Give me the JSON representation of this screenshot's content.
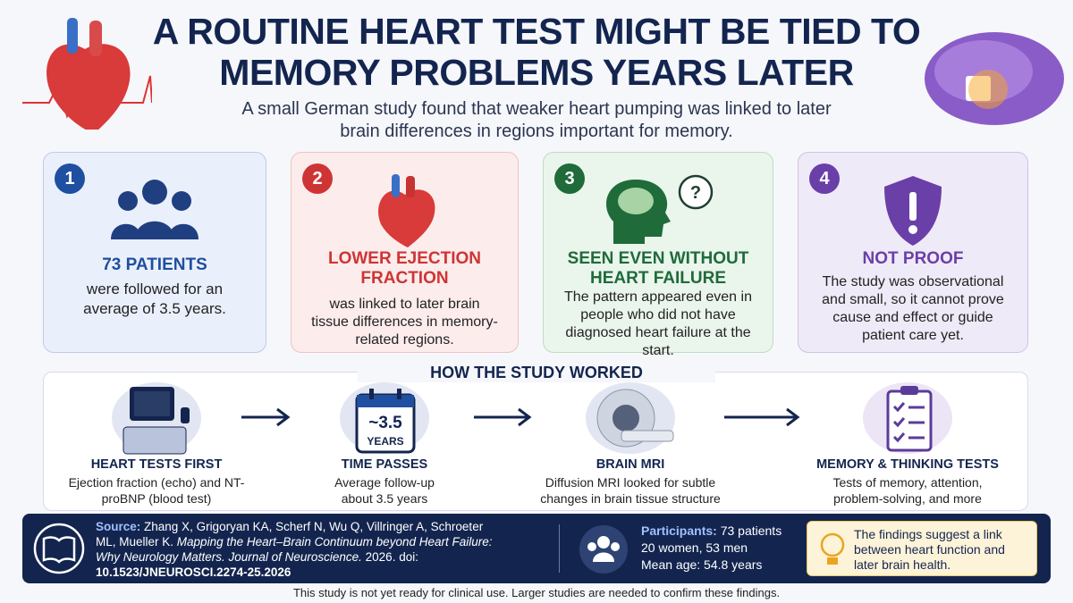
{
  "header": {
    "title_lines": [
      "A ROUTINE HEART TEST MIGHT BE TIED TO",
      "MEMORY PROBLEMS YEARS LATER"
    ],
    "subtitle_lines": [
      "A small German study found that weaker heart pumping was linked to later",
      "brain differences in regions important for memory."
    ]
  },
  "cards": [
    {
      "number": "1",
      "heading": "73 PATIENTS",
      "body": "were followed for an average of 3.5 years."
    },
    {
      "number": "2",
      "heading": "LOWER EJECTION FRACTION",
      "body": "was linked to later brain tissue differences in memory-related regions."
    },
    {
      "number": "3",
      "heading": "SEEN EVEN WITHOUT HEART FAILURE",
      "body": "The pattern appeared even in people who did not have diagnosed heart failure at the start."
    },
    {
      "number": "4",
      "heading": "NOT PROOF",
      "body": "The study was observational and small, so it cannot prove cause and effect or guide patient care yet."
    }
  ],
  "process": {
    "title": "HOW THE STUDY WORKED",
    "calendar_value": "~3.5",
    "calendar_unit": "YEARS",
    "steps": [
      {
        "heading": "HEART TESTS FIRST",
        "body": "Ejection fraction (echo) and NT-proBNP (blood test)"
      },
      {
        "heading": "TIME PASSES",
        "body": "Average follow-up about 3.5 years"
      },
      {
        "heading": "BRAIN MRI",
        "body": "Diffusion MRI looked for subtle changes in brain tissue structure"
      },
      {
        "heading": "MEMORY & THINKING TESTS",
        "body": "Tests of memory, attention, problem-solving, and more"
      }
    ]
  },
  "footer": {
    "source_label": "Source:",
    "source_authors": "Zhang X, Grigoryan KA, Scherf N, Wu Q, Villringer A, Schroeter ML, Mueller K.",
    "source_title": "Mapping the Heart–Brain Continuum beyond Heart Failure: Why Neurology Matters. Journal of Neuroscience.",
    "source_year": "2026. doi:",
    "source_doi": "10.1523/JNEUROSCI.2274-25.2026",
    "participants_label": "Participants:",
    "participants_count": "73 patients",
    "participants_sex": "20 women, 53 men",
    "participants_age": "Mean age: 54.8 years",
    "callout": "The findings suggest a link between heart function and later brain health.",
    "disclaimer": "This study is not yet ready for clinical use. Larger studies are needed to confirm these findings."
  }
}
